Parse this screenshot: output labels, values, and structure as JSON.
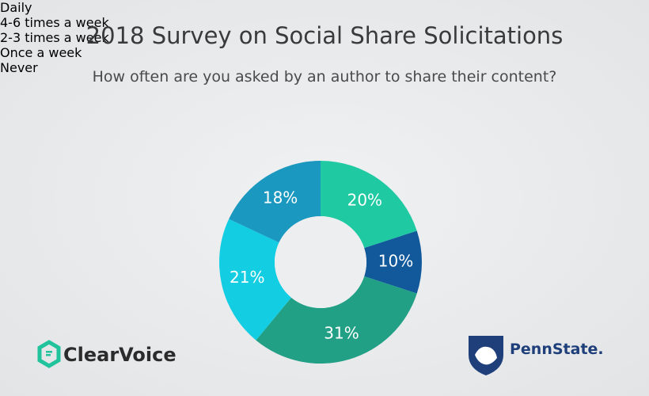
{
  "chart_data": {
    "type": "donut",
    "title": "2018 Survey on Social Share Solicitations",
    "subtitle": "How often are you asked by an author to share their content?",
    "categories": [
      "Daily",
      "4-6 times a week",
      "2-3 times a week",
      "Once a week",
      "Never"
    ],
    "values": [
      20,
      10,
      31,
      21,
      18
    ],
    "value_labels": [
      "20%",
      "10%",
      "31%",
      "21%",
      "18%"
    ],
    "colors": [
      "#1fc9a1",
      "#11599a",
      "#21a085",
      "#13cde2",
      "#1a98bf"
    ],
    "legend": "top"
  },
  "logos": [
    "ClearVoice",
    "PennState."
  ]
}
